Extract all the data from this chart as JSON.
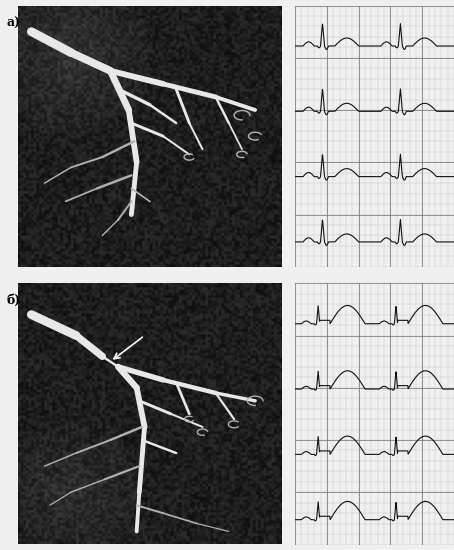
{
  "figure_width": 4.54,
  "figure_height": 5.5,
  "dpi": 100,
  "bg_color": "#f0f0f0",
  "angio_bg": "#111111",
  "ecg_bg": "#d0d0c0",
  "ecg_grid_minor_color": "#aaaaaa",
  "ecg_grid_major_color": "#777777",
  "ecg_line_color": "#111111",
  "vessel_color_bright": "#e8e8e8",
  "vessel_color_mid": "#b0b0b0",
  "label_a": "а)",
  "label_b": "б)",
  "label_fontsize": 9,
  "panels": [
    {
      "label": "а)",
      "is_spasm": false
    },
    {
      "label": "б)",
      "is_spasm": true
    }
  ]
}
